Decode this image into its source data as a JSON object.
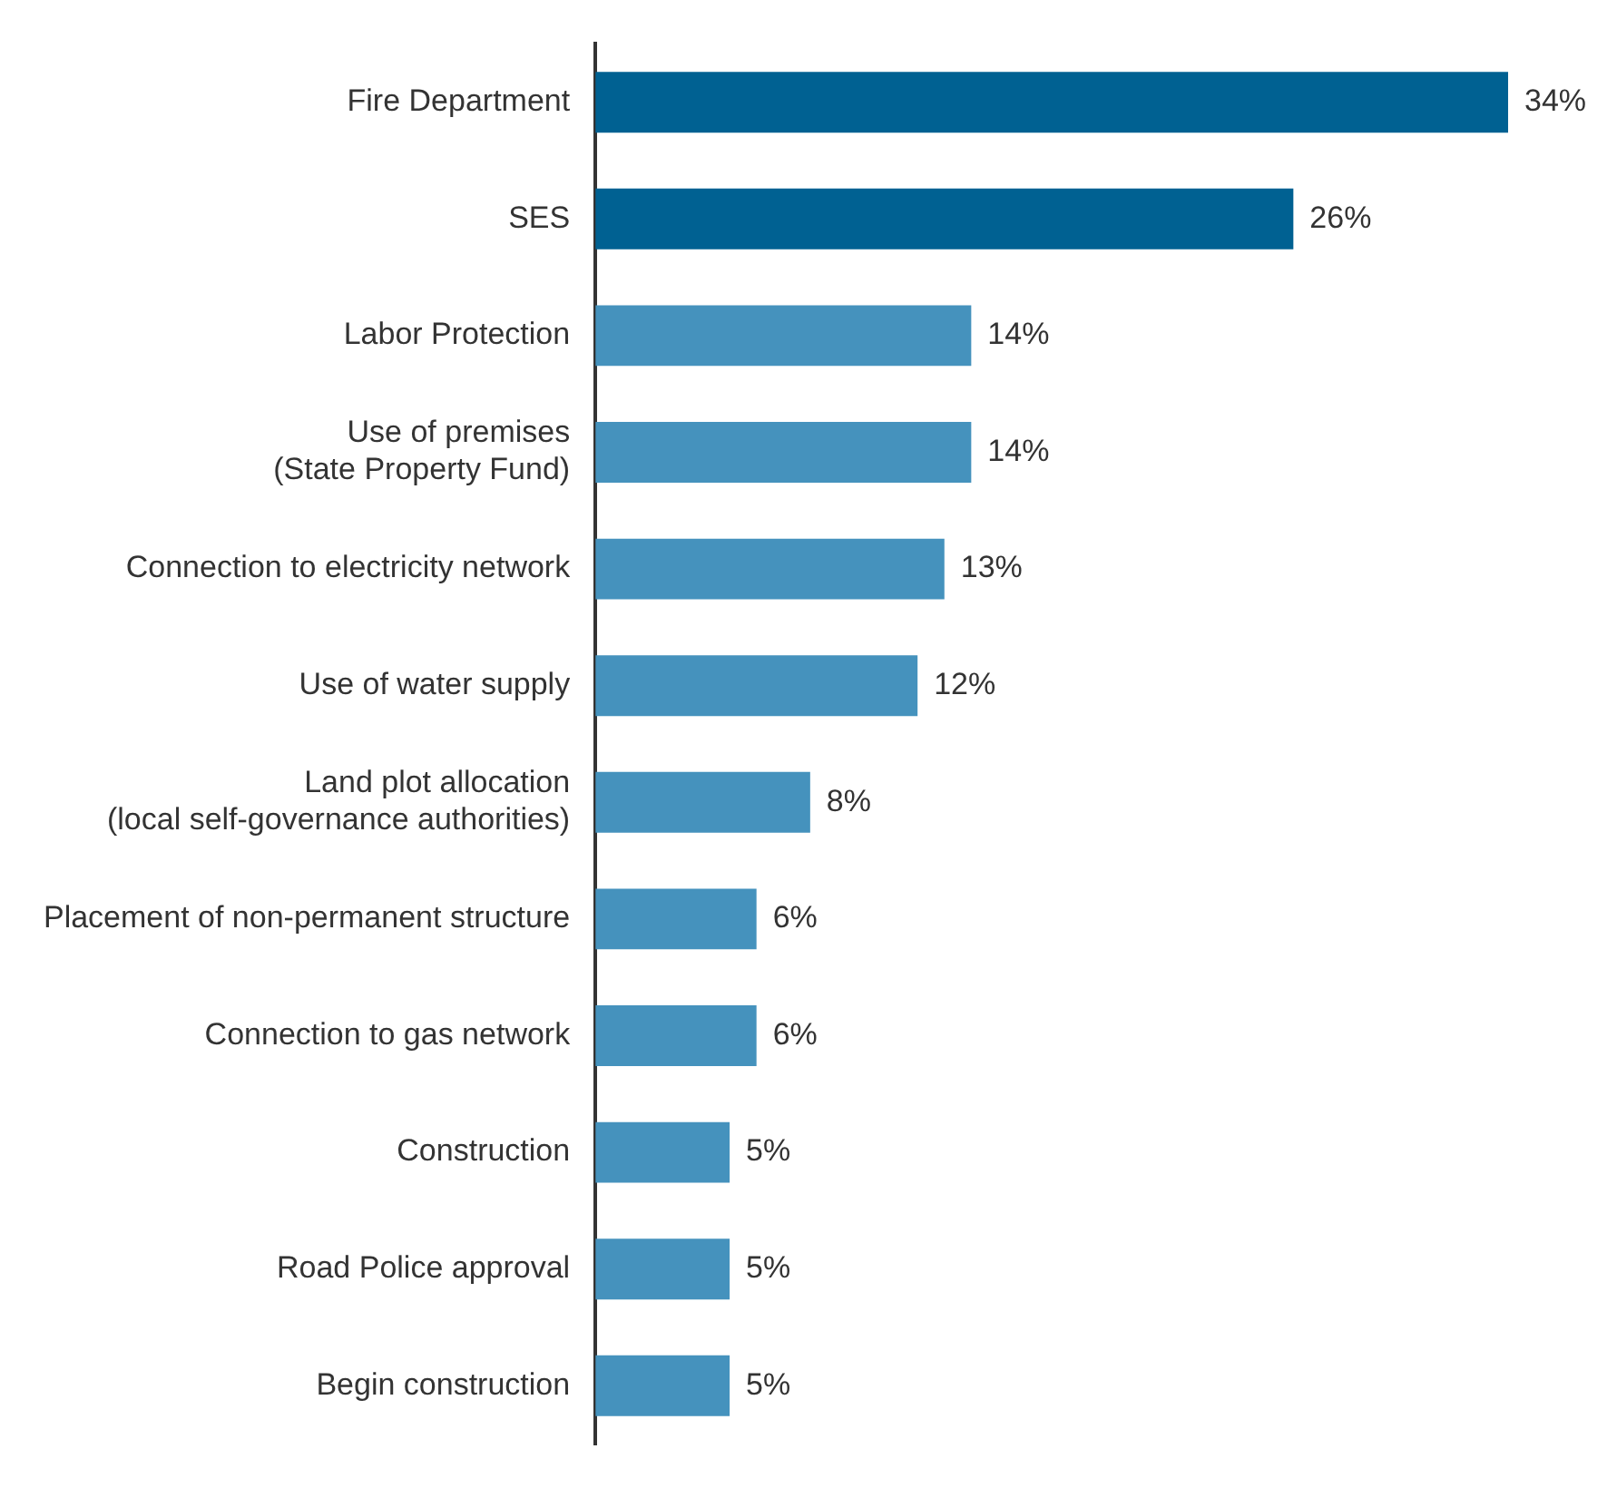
{
  "chart_data": {
    "type": "bar",
    "orientation": "horizontal",
    "categories": [
      "Fire Department",
      "SES",
      "Labor Protection",
      "Use of premises\n(State Property Fund)",
      "Connection to electricity network",
      "Use of water supply",
      "Land plot allocation\n(local self-governance authorities)",
      "Placement of non-permanent structure",
      "Connection to gas network",
      "Construction",
      "Road Police approval",
      "Begin construction"
    ],
    "values": [
      34,
      26,
      14,
      14,
      13,
      12,
      8,
      6,
      6,
      5,
      5,
      5
    ],
    "value_labels": [
      "34%",
      "26%",
      "14%",
      "14%",
      "13%",
      "12%",
      "8%",
      "6%",
      "6%",
      "5%",
      "5%",
      "5%"
    ],
    "colors": [
      "#006192",
      "#006192",
      "#4592bd",
      "#4592bd",
      "#4592bd",
      "#4592bd",
      "#4592bd",
      "#4592bd",
      "#4592bd",
      "#4592bd",
      "#4592bd",
      "#4592bd"
    ],
    "grid": false,
    "legend": false
  }
}
